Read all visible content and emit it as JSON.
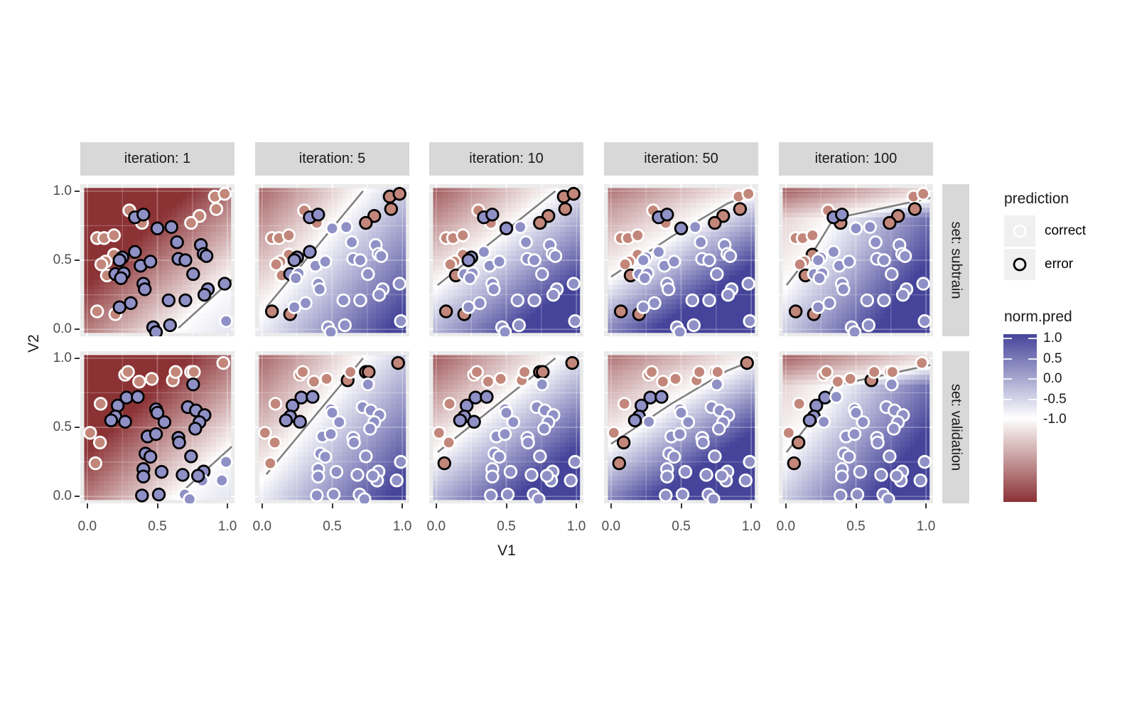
{
  "chart_data": {
    "type": "scatter",
    "description": "Faceted decision-boundary scatter plot over a diverging prediction heatmap; columns are boosting iterations, rows are data sets",
    "facets": {
      "col_labels": [
        "iteration: 1",
        "iteration: 5",
        "iteration: 10",
        "iteration: 50",
        "iteration: 100"
      ],
      "row_labels": [
        "set: subtrain",
        "set: validation"
      ],
      "col_keys": [
        "1",
        "5",
        "10",
        "50",
        "100"
      ],
      "row_keys": [
        "subtrain",
        "validation"
      ]
    },
    "axes": {
      "x": {
        "title": "V1",
        "tick_labels": [
          "0.0",
          "0.5",
          "1.0"
        ],
        "tick_values": [
          0,
          0.5,
          1
        ],
        "minor_ticks": [
          0.25,
          0.75
        ],
        "range": [
          -0.05,
          1.05
        ]
      },
      "y": {
        "title": "V2",
        "tick_labels": [
          "1.0",
          "0.5",
          "0.0"
        ],
        "tick_values": [
          1,
          0.5,
          0
        ],
        "minor_ticks": [
          0.25,
          0.75
        ],
        "range": [
          -0.05,
          1.05
        ]
      }
    },
    "legend": {
      "prediction": {
        "title": "prediction",
        "items": [
          {
            "label": "correct",
            "ring_color": "#ffffff"
          },
          {
            "label": "error",
            "ring_color": "#000000"
          }
        ]
      },
      "colorbar": {
        "title": "norm.pred",
        "tick_labels": [
          "1.0",
          "0.5",
          "0.0",
          "-0.5",
          "-1.0"
        ],
        "tick_values": [
          1.0,
          0.5,
          0.0,
          -0.5,
          -1.0
        ],
        "top_color": "#45449a",
        "mid_color": "#ffffff",
        "bottom_color": "#8b3235"
      }
    },
    "colors": {
      "negative": "#8b3235",
      "positive": "#45449a",
      "point_blue_fill": "#8f90c6",
      "point_red_fill": "#c2877a",
      "correct_stroke": "#ffffff",
      "error_stroke": "#000000",
      "boundary_line": "#7f7f7f",
      "panel_background": "#ebebeb",
      "grid_line": "#ffffff",
      "strip_background": "#d8d8d8"
    },
    "boundaries": {
      "1": [
        [
          0.65,
          0.01
        ],
        [
          1.03,
          0.36
        ]
      ],
      "5": [
        [
          0.03,
          0.16
        ],
        [
          0.72,
          1.0
        ]
      ],
      "10": [
        [
          0.01,
          0.32
        ],
        [
          0.85,
          1.0
        ]
      ],
      "50": [
        [
          0.0,
          0.38
        ],
        [
          0.43,
          0.67
        ],
        [
          0.83,
          0.91
        ],
        [
          0.98,
          0.97
        ]
      ],
      "100": [
        [
          0.005,
          0.32
        ],
        [
          0.22,
          0.6
        ],
        [
          0.34,
          0.8
        ],
        [
          1.03,
          0.95
        ]
      ]
    },
    "gradient_gain": {
      "1": [
        1.0,
        0.4
      ],
      "5": [
        1.0,
        1.0
      ],
      "10": [
        0.9,
        1.05
      ],
      "50": [
        0.62,
        1.15
      ],
      "100": [
        0.58,
        1.15
      ]
    },
    "points": {
      "subtrain": [
        [
          0.91,
          0.96,
          "r"
        ],
        [
          0.98,
          0.98,
          "r"
        ],
        [
          0.92,
          0.87,
          "r"
        ],
        [
          0.8,
          0.82,
          "r"
        ],
        [
          0.74,
          0.77,
          "r"
        ],
        [
          0.3,
          0.86,
          "r"
        ],
        [
          0.39,
          0.77,
          "r"
        ],
        [
          0.07,
          0.66,
          "r"
        ],
        [
          0.12,
          0.66,
          "r"
        ],
        [
          0.19,
          0.68,
          "r"
        ],
        [
          0.19,
          0.54,
          "r"
        ],
        [
          0.13,
          0.49,
          "r"
        ],
        [
          0.1,
          0.47,
          "r"
        ],
        [
          0.14,
          0.39,
          "r"
        ],
        [
          0.07,
          0.13,
          "r"
        ],
        [
          0.2,
          0.11,
          "r"
        ],
        [
          0.34,
          0.81,
          "b"
        ],
        [
          0.4,
          0.83,
          "b"
        ],
        [
          0.5,
          0.73,
          "b"
        ],
        [
          0.6,
          0.74,
          "b"
        ],
        [
          0.64,
          0.63,
          "b"
        ],
        [
          0.81,
          0.61,
          "b"
        ],
        [
          0.83,
          0.545,
          "b"
        ],
        [
          0.85,
          0.53,
          "b"
        ],
        [
          0.25,
          0.52,
          "b"
        ],
        [
          0.34,
          0.56,
          "b"
        ],
        [
          0.23,
          0.5,
          "b"
        ],
        [
          0.2,
          0.4,
          "b"
        ],
        [
          0.26,
          0.405,
          "b"
        ],
        [
          0.24,
          0.37,
          "b"
        ],
        [
          0.38,
          0.46,
          "b"
        ],
        [
          0.45,
          0.49,
          "b"
        ],
        [
          0.65,
          0.51,
          "b"
        ],
        [
          0.7,
          0.5,
          "b"
        ],
        [
          0.755,
          0.4,
          "b"
        ],
        [
          0.4,
          0.33,
          "b"
        ],
        [
          0.41,
          0.29,
          "b"
        ],
        [
          0.86,
          0.29,
          "b"
        ],
        [
          0.835,
          0.25,
          "b"
        ],
        [
          0.98,
          0.33,
          "b"
        ],
        [
          0.23,
          0.16,
          "b"
        ],
        [
          0.31,
          0.19,
          "b"
        ],
        [
          0.58,
          0.21,
          "b"
        ],
        [
          0.7,
          0.21,
          "b"
        ],
        [
          0.47,
          0.015,
          "b"
        ],
        [
          0.49,
          -0.02,
          "b"
        ],
        [
          0.59,
          0.03,
          "b"
        ],
        [
          0.99,
          0.06,
          "b"
        ]
      ],
      "validation": [
        [
          0.27,
          0.88,
          "r"
        ],
        [
          0.29,
          0.9,
          "r"
        ],
        [
          0.37,
          0.83,
          "r"
        ],
        [
          0.46,
          0.85,
          "r"
        ],
        [
          0.61,
          0.84,
          "r"
        ],
        [
          0.63,
          0.9,
          "r"
        ],
        [
          0.74,
          0.9,
          "r"
        ],
        [
          0.76,
          0.9,
          "r"
        ],
        [
          0.97,
          0.965,
          "r"
        ],
        [
          0.095,
          0.67,
          "r"
        ],
        [
          0.02,
          0.46,
          "r"
        ],
        [
          0.09,
          0.39,
          "r"
        ],
        [
          0.058,
          0.24,
          "r"
        ],
        [
          0.28,
          0.715,
          "b"
        ],
        [
          0.36,
          0.72,
          "b"
        ],
        [
          0.217,
          0.657,
          "b"
        ],
        [
          0.2,
          0.578,
          "b"
        ],
        [
          0.17,
          0.55,
          "b"
        ],
        [
          0.27,
          0.54,
          "b"
        ],
        [
          0.49,
          0.63,
          "b"
        ],
        [
          0.5,
          0.605,
          "b"
        ],
        [
          0.55,
          0.537,
          "b"
        ],
        [
          0.717,
          0.646,
          "b"
        ],
        [
          0.755,
          0.81,
          "b"
        ],
        [
          0.775,
          0.622,
          "b"
        ],
        [
          0.836,
          0.588,
          "b"
        ],
        [
          0.8,
          0.537,
          "b"
        ],
        [
          0.77,
          0.49,
          "b"
        ],
        [
          0.43,
          0.434,
          "b"
        ],
        [
          0.49,
          0.451,
          "b"
        ],
        [
          0.65,
          0.424,
          "b"
        ],
        [
          0.655,
          0.39,
          "b"
        ],
        [
          0.415,
          0.31,
          "b"
        ],
        [
          0.45,
          0.287,
          "b"
        ],
        [
          0.74,
          0.29,
          "b"
        ],
        [
          0.4,
          0.198,
          "b"
        ],
        [
          0.4,
          0.144,
          "b"
        ],
        [
          0.53,
          0.178,
          "b"
        ],
        [
          0.68,
          0.156,
          "b"
        ],
        [
          0.83,
          0.18,
          "b"
        ],
        [
          0.82,
          0.115,
          "b"
        ],
        [
          0.79,
          0.15,
          "b"
        ],
        [
          0.39,
          0.007,
          "b"
        ],
        [
          0.51,
          0.014,
          "b"
        ],
        [
          0.695,
          0.014,
          "b"
        ],
        [
          0.99,
          0.25,
          "b"
        ],
        [
          0.96,
          0.116,
          "b"
        ],
        [
          0.73,
          -0.02,
          "b"
        ]
      ]
    }
  }
}
